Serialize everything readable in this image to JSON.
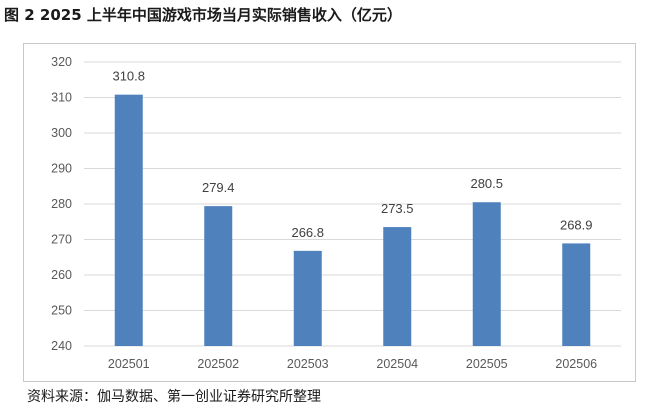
{
  "figure": {
    "title": "图 2   2025 上半年中国游戏市场当月实际销售收入（亿元）",
    "source": "资料来源：伽马数据、第一创业证券研究所整理"
  },
  "chart_data": {
    "type": "bar",
    "categories": [
      "202501",
      "202502",
      "202503",
      "202504",
      "202505",
      "202506"
    ],
    "values": [
      310.8,
      279.4,
      266.8,
      273.5,
      280.5,
      268.9
    ],
    "data_labels": [
      "310.8",
      "279.4",
      "266.8",
      "273.5",
      "280.5",
      "268.9"
    ],
    "title": "",
    "xlabel": "",
    "ylabel": "",
    "ylim": [
      240,
      320
    ],
    "yticks": [
      240,
      250,
      260,
      270,
      280,
      290,
      300,
      310,
      320
    ],
    "grid": true,
    "legend": "none",
    "bar_color": "#4f81bd",
    "grid_color": "#d9d9d9",
    "tick_label_color": "#595959",
    "data_label_color": "#404040"
  }
}
